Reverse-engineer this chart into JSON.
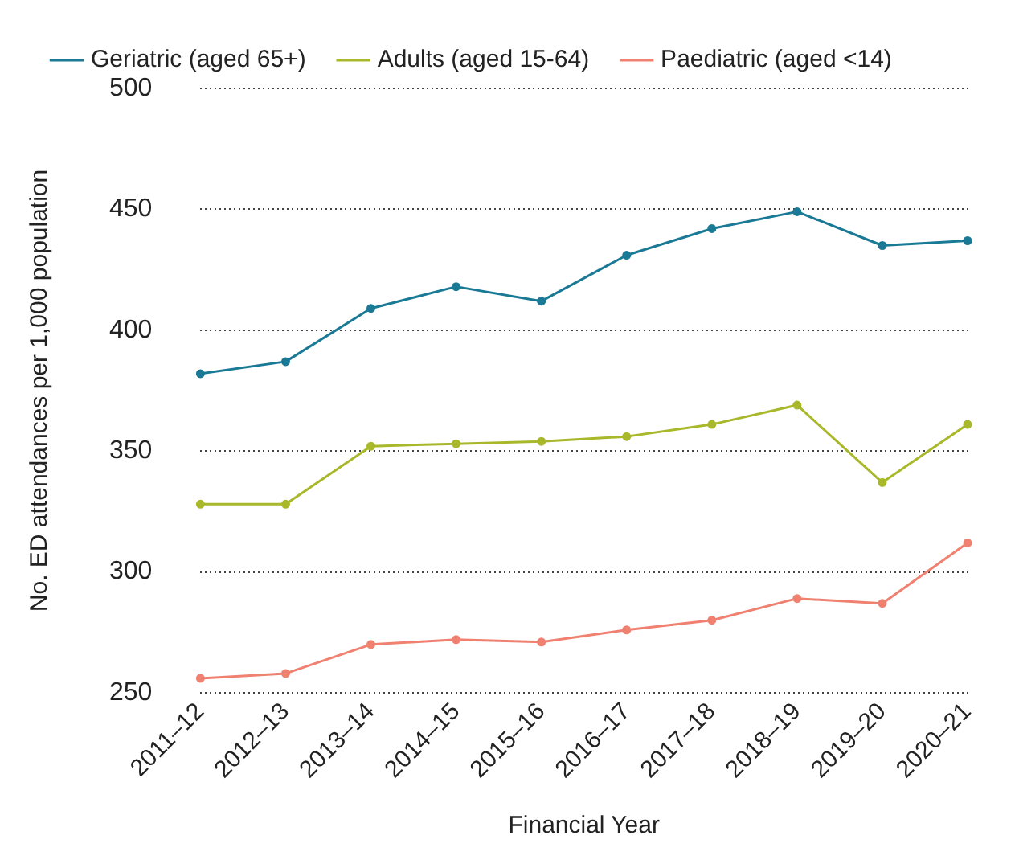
{
  "chart_data": {
    "type": "line",
    "xlabel": "Financial Year",
    "ylabel": "No. ED attendances per 1,000 population",
    "categories": [
      "2011–12",
      "2012–13",
      "2013–14",
      "2014–15",
      "2015–16",
      "2016–17",
      "2017–18",
      "2018–19",
      "2019–20",
      "2020–21"
    ],
    "series": [
      {
        "name": "Geriatric (aged 65+)",
        "color": "#1a7a95",
        "values": [
          382,
          387,
          409,
          418,
          412,
          431,
          442,
          449,
          435,
          437
        ]
      },
      {
        "name": "Adults (aged 15-64)",
        "color": "#a8b82a",
        "values": [
          328,
          328,
          352,
          353,
          354,
          356,
          361,
          369,
          337,
          361
        ]
      },
      {
        "name": "Paediatric (aged <14)",
        "color": "#f08070",
        "values": [
          256,
          258,
          270,
          272,
          271,
          276,
          280,
          289,
          287,
          312
        ]
      }
    ],
    "ylim": [
      250,
      500
    ],
    "yticks": [
      250,
      300,
      350,
      400,
      450,
      500
    ],
    "grid": "y",
    "legend": "top",
    "marker": "circle",
    "line_style": "solid"
  }
}
